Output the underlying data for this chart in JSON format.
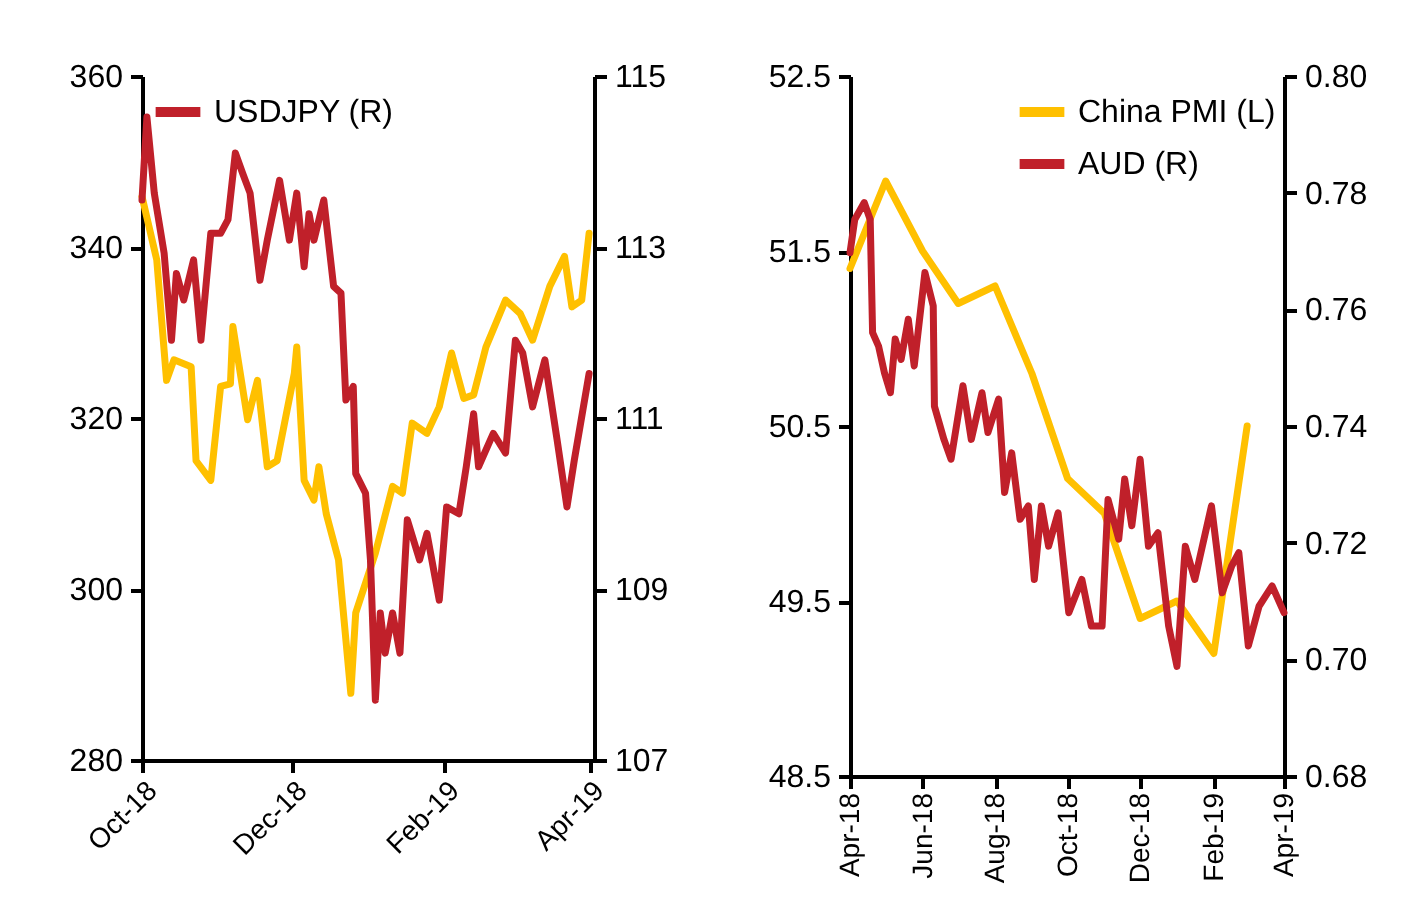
{
  "chart_data": [
    {
      "type": "line",
      "legend": "top left",
      "xlim": [
        "2018-10-01",
        "2019-04-03"
      ],
      "xticks": [
        {
          "value": "2018-10",
          "label": "Oct-18"
        },
        {
          "value": "2018-12",
          "label": "Dec-18"
        },
        {
          "value": "2019-02",
          "label": "Feb-19"
        },
        {
          "value": "2019-04",
          "label": "Apr-19"
        }
      ],
      "ylim": [
        280,
        360
      ],
      "yticks": [
        280,
        300,
        320,
        340,
        360
      ],
      "y2lim": [
        107,
        115
      ],
      "y2ticks": [
        107,
        109,
        111,
        113,
        115
      ],
      "series": [
        {
          "color": "#ffc000",
          "x": [
            "2018-10-01",
            "2018-10-07",
            "2018-10-11",
            "2018-10-14",
            "2018-10-21",
            "2018-10-23",
            "2018-10-29",
            "2018-11-02",
            "2018-11-06",
            "2018-11-07",
            "2018-11-13",
            "2018-11-17",
            "2018-11-21",
            "2018-11-25",
            "2018-12-02",
            "2018-12-03",
            "2018-12-06",
            "2018-12-10",
            "2018-12-12",
            "2018-12-15",
            "2018-12-20",
            "2018-12-25",
            "2018-12-27",
            "2019-01-04",
            "2019-01-11",
            "2019-01-15",
            "2019-01-19",
            "2019-01-25",
            "2019-01-30",
            "2019-02-04",
            "2019-02-09",
            "2019-02-13",
            "2019-02-18",
            "2019-02-26",
            "2019-03-04",
            "2019-03-09",
            "2019-03-16",
            "2019-03-22",
            "2019-03-25",
            "2019-03-29",
            "2019-04-01"
          ],
          "values": [
            345.9,
            338.5,
            324.4,
            326.8,
            326,
            315,
            312.7,
            323.7,
            324,
            330.7,
            319.8,
            324.4,
            314.3,
            315,
            325.2,
            328.3,
            312.7,
            310.4,
            314.3,
            308.8,
            303.4,
            287.8,
            297.2,
            304.2,
            312,
            311.2,
            319.4,
            318.2,
            321.3,
            327.6,
            322.3,
            322.7,
            328.3,
            333.8,
            332.2,
            329.1,
            335.4,
            338.9,
            333,
            333.8,
            341.6
          ]
        },
        {
          "name": "USDJPY (R)",
          "color": "#c0202a",
          "axis": "y2",
          "x": [
            "2018-10-01",
            "2018-10-03",
            "2018-10-06",
            "2018-10-10",
            "2018-10-13",
            "2018-10-15",
            "2018-10-18",
            "2018-10-22",
            "2018-10-25",
            "2018-10-29",
            "2018-11-02",
            "2018-11-05",
            "2018-11-08",
            "2018-11-11",
            "2018-11-14",
            "2018-11-18",
            "2018-11-21",
            "2018-11-26",
            "2018-11-30",
            "2018-12-03",
            "2018-12-06",
            "2018-12-08",
            "2018-12-10",
            "2018-12-14",
            "2018-12-18",
            "2018-12-21",
            "2018-12-23",
            "2018-12-26",
            "2018-12-27",
            "2018-12-31",
            "2019-01-02",
            "2019-01-04",
            "2019-01-06",
            "2019-01-08",
            "2019-01-11",
            "2019-01-14",
            "2019-01-17",
            "2019-01-22",
            "2019-01-25",
            "2019-01-30",
            "2019-02-02",
            "2019-02-07",
            "2019-02-10",
            "2019-02-13",
            "2019-02-15",
            "2019-02-21",
            "2019-02-26",
            "2019-03-02",
            "2019-03-05",
            "2019-03-09",
            "2019-03-14",
            "2019-03-19",
            "2019-03-23",
            "2019-03-26",
            "2019-04-01"
          ],
          "values": [
            113.55,
            114.52,
            113.63,
            112.93,
            111.91,
            112.69,
            112.38,
            112.85,
            111.91,
            113.16,
            113.16,
            113.32,
            114.1,
            113.86,
            113.63,
            112.61,
            113.08,
            113.78,
            113.08,
            113.63,
            112.77,
            113.39,
            113.08,
            113.55,
            112.54,
            112.46,
            111.21,
            111.37,
            110.35,
            110.12,
            109.34,
            107.7,
            108.72,
            108.25,
            108.72,
            108.25,
            109.81,
            109.34,
            109.65,
            108.87,
            109.96,
            109.88,
            110.43,
            111.05,
            110.43,
            110.82,
            110.59,
            111.91,
            111.76,
            111.13,
            111.68,
            110.74,
            109.96,
            110.51,
            111.52
          ]
        }
      ]
    },
    {
      "type": "line",
      "legend": "top right",
      "xlim": [
        "2018-04-01",
        "2019-04-01"
      ],
      "xticks": [
        {
          "value": "2018-04",
          "label": "Apr-18"
        },
        {
          "value": "2018-06",
          "label": "Jun-18"
        },
        {
          "value": "2018-08",
          "label": "Aug-18"
        },
        {
          "value": "2018-10",
          "label": "Oct-18"
        },
        {
          "value": "2018-12",
          "label": "Dec-18"
        },
        {
          "value": "2019-02",
          "label": "Feb-19"
        },
        {
          "value": "2019-04",
          "label": "Apr-19"
        }
      ],
      "ylim": [
        48.5,
        52.5
      ],
      "yticks": [
        48.5,
        49.5,
        50.5,
        51.5,
        52.5
      ],
      "y2lim": [
        0.68,
        0.8
      ],
      "y2ticks": [
        0.68,
        {
          "value": 0.7,
          "label": "0.70"
        },
        0.72,
        0.74,
        0.76,
        0.78,
        {
          "value": 0.8,
          "label": "0.80"
        }
      ],
      "series": [
        {
          "name": "China PMI (L)",
          "color": "#ffc000",
          "x": [
            "2018-04-01",
            "2018-05-01",
            "2018-06-01",
            "2018-07-01",
            "2018-08-01",
            "2018-09-01",
            "2018-10-01",
            "2018-11-01",
            "2018-12-01",
            "2019-01-01",
            "2019-02-01",
            "2019-03-01"
          ],
          "values": [
            51.4,
            51.9,
            51.5,
            51.2,
            51.3,
            50.8,
            50.2,
            50.0,
            49.4,
            49.5,
            49.2,
            50.5
          ]
        },
        {
          "name": "AUD (R)",
          "color": "#c0202a",
          "axis": "y2",
          "x": [
            "2018-04-01",
            "2018-04-05",
            "2018-04-13",
            "2018-04-18",
            "2018-04-20",
            "2018-04-25",
            "2018-04-30",
            "2018-05-05",
            "2018-05-09",
            "2018-05-14",
            "2018-05-20",
            "2018-05-25",
            "2018-06-03",
            "2018-06-10",
            "2018-06-11",
            "2018-06-19",
            "2018-06-25",
            "2018-07-05",
            "2018-07-12",
            "2018-07-21",
            "2018-07-26",
            "2018-08-04",
            "2018-08-09",
            "2018-08-15",
            "2018-08-22",
            "2018-08-29",
            "2018-09-03",
            "2018-09-09",
            "2018-09-15",
            "2018-09-23",
            "2018-10-02",
            "2018-10-13",
            "2018-10-21",
            "2018-10-30",
            "2018-11-04",
            "2018-11-13",
            "2018-11-18",
            "2018-11-24",
            "2018-12-01",
            "2018-12-08",
            "2018-12-16",
            "2018-12-25",
            "2019-01-01",
            "2019-01-08",
            "2019-01-16",
            "2019-01-30",
            "2019-02-08",
            "2019-02-16",
            "2019-02-22",
            "2019-03-02",
            "2019-03-11",
            "2019-03-22",
            "2019-04-01"
          ],
          "values": [
            0.7697,
            0.7754,
            0.7783,
            0.7754,
            0.756,
            0.7537,
            0.7491,
            0.7457,
            0.7549,
            0.7514,
            0.7583,
            0.7503,
            0.7663,
            0.7606,
            0.7434,
            0.7377,
            0.7343,
            0.7469,
            0.7377,
            0.7457,
            0.7389,
            0.7446,
            0.7286,
            0.7354,
            0.724,
            0.7263,
            0.7137,
            0.7263,
            0.7194,
            0.7251,
            0.708,
            0.7137,
            0.7057,
            0.7057,
            0.7274,
            0.7206,
            0.7309,
            0.7229,
            0.7343,
            0.7194,
            0.7217,
            0.7057,
            0.6988,
            0.7194,
            0.7137,
            0.7263,
            0.7114,
            0.716,
            0.7183,
            0.7023,
            0.7091,
            0.7126,
            0.708
          ]
        }
      ]
    }
  ]
}
